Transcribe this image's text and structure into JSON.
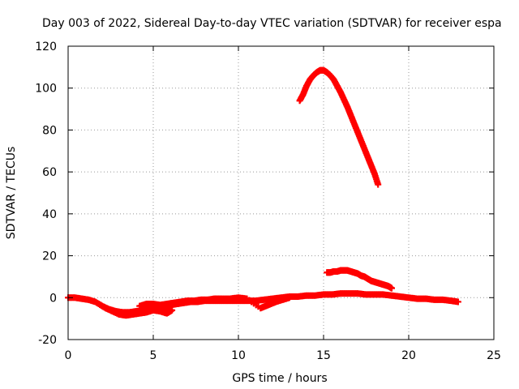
{
  "chart_data": {
    "type": "scatter",
    "title": "Day 003 of 2022, Sidereal Day-to-day VTEC variation (SDTVAR) for receiver espa",
    "xlabel": "GPS time / hours",
    "ylabel": "SDTVAR / TECUs",
    "xlim": [
      0,
      25
    ],
    "ylim": [
      -20,
      120
    ],
    "xticks": [
      0,
      5,
      10,
      15,
      20,
      25
    ],
    "yticks": [
      -20,
      0,
      20,
      40,
      60,
      80,
      100,
      120
    ],
    "xtick_labels": [
      "0",
      "5",
      "10",
      "15",
      "20",
      "25"
    ],
    "ytick_labels": [
      "-20",
      "0",
      "20",
      "40",
      "60",
      "80",
      "100",
      "120"
    ],
    "grid": true,
    "marker": "+",
    "color": "#ff0000",
    "series": [
      {
        "name": "baseline",
        "points": [
          [
            0.0,
            0
          ],
          [
            0.4,
            0
          ],
          [
            0.8,
            -0.5
          ],
          [
            1.2,
            -1
          ],
          [
            1.6,
            -2
          ],
          [
            2.0,
            -4
          ],
          [
            2.4,
            -5.5
          ],
          [
            2.8,
            -6.5
          ],
          [
            3.2,
            -7
          ],
          [
            3.6,
            -7
          ],
          [
            4.0,
            -6.5
          ],
          [
            4.4,
            -6
          ],
          [
            4.8,
            -5
          ],
          [
            5.2,
            -4.5
          ],
          [
            5.6,
            -4
          ],
          [
            6.0,
            -3.5
          ],
          [
            6.4,
            -3
          ],
          [
            6.8,
            -2.5
          ],
          [
            7.2,
            -2
          ],
          [
            7.6,
            -2
          ],
          [
            8.0,
            -1.5
          ],
          [
            8.5,
            -1.5
          ],
          [
            9.0,
            -1.5
          ],
          [
            9.5,
            -1.5
          ],
          [
            10.0,
            -1.5
          ],
          [
            10.5,
            -1.5
          ],
          [
            11.0,
            -1.5
          ],
          [
            11.5,
            -1
          ],
          [
            12.0,
            -0.5
          ],
          [
            12.5,
            0
          ],
          [
            13.0,
            0.5
          ],
          [
            13.5,
            0.5
          ],
          [
            14.0,
            1
          ],
          [
            14.5,
            1
          ],
          [
            15.0,
            1.5
          ],
          [
            15.5,
            1.5
          ],
          [
            16.0,
            2
          ],
          [
            16.5,
            2
          ],
          [
            17.0,
            2
          ],
          [
            17.5,
            1.5
          ],
          [
            18.0,
            1.5
          ],
          [
            18.5,
            1.5
          ],
          [
            19.0,
            1
          ],
          [
            19.5,
            0.5
          ],
          [
            20.0,
            0
          ],
          [
            20.5,
            -0.5
          ],
          [
            21.0,
            -0.5
          ],
          [
            21.5,
            -1
          ],
          [
            22.0,
            -1
          ],
          [
            22.5,
            -1.5
          ],
          [
            22.9,
            -2
          ]
        ]
      },
      {
        "name": "lower-branch",
        "points": [
          [
            1.8,
            -3
          ],
          [
            2.2,
            -5
          ],
          [
            2.6,
            -6.5
          ],
          [
            3.0,
            -8
          ],
          [
            3.4,
            -8.5
          ],
          [
            3.8,
            -8
          ],
          [
            4.2,
            -7.5
          ],
          [
            4.6,
            -7
          ],
          [
            5.0,
            -6
          ],
          [
            5.4,
            -6.5
          ],
          [
            5.8,
            -7.5
          ],
          [
            6.1,
            -6
          ],
          [
            5.7,
            -5.5
          ]
        ]
      },
      {
        "name": "upper-branch",
        "points": [
          [
            4.2,
            -4
          ],
          [
            4.6,
            -3
          ],
          [
            5.0,
            -3
          ],
          [
            5.4,
            -3.5
          ],
          [
            5.8,
            -3
          ],
          [
            6.2,
            -2.5
          ],
          [
            6.6,
            -2
          ],
          [
            7.0,
            -1.5
          ],
          [
            7.4,
            -1.5
          ],
          [
            7.8,
            -1
          ],
          [
            8.2,
            -1
          ],
          [
            8.6,
            -0.5
          ],
          [
            9.0,
            -0.5
          ],
          [
            9.5,
            -0.5
          ],
          [
            10.0,
            0
          ],
          [
            10.5,
            -0.5
          ],
          [
            11.3,
            -5
          ],
          [
            11.6,
            -4
          ],
          [
            11.9,
            -3
          ],
          [
            12.2,
            -2
          ],
          [
            12.6,
            -1
          ],
          [
            13.0,
            0
          ]
        ]
      },
      {
        "name": "peak-arc",
        "points": [
          [
            13.6,
            94
          ],
          [
            13.8,
            97
          ],
          [
            14.0,
            101
          ],
          [
            14.2,
            104
          ],
          [
            14.4,
            106
          ],
          [
            14.6,
            107.5
          ],
          [
            14.8,
            108.5
          ],
          [
            15.0,
            108.5
          ],
          [
            15.2,
            107.5
          ],
          [
            15.4,
            106
          ],
          [
            15.6,
            104
          ],
          [
            15.8,
            101
          ],
          [
            16.0,
            98
          ],
          [
            16.2,
            94.5
          ],
          [
            16.4,
            91
          ],
          [
            16.6,
            87
          ],
          [
            16.8,
            83
          ],
          [
            17.0,
            79
          ],
          [
            17.2,
            75
          ],
          [
            17.4,
            71
          ],
          [
            17.6,
            67
          ],
          [
            17.8,
            63
          ],
          [
            18.0,
            59
          ],
          [
            18.2,
            54
          ]
        ]
      },
      {
        "name": "secondary-bump",
        "points": [
          [
            15.2,
            12
          ],
          [
            15.4,
            12
          ],
          [
            15.6,
            12.5
          ],
          [
            15.8,
            12.5
          ],
          [
            16.0,
            13
          ],
          [
            16.2,
            13
          ],
          [
            16.4,
            13
          ],
          [
            16.6,
            12.5
          ],
          [
            16.8,
            12
          ],
          [
            17.0,
            11.5
          ],
          [
            17.2,
            10.5
          ],
          [
            17.4,
            10
          ],
          [
            17.6,
            9
          ],
          [
            17.8,
            8
          ],
          [
            18.0,
            7.5
          ],
          [
            18.2,
            7
          ],
          [
            18.4,
            6.5
          ],
          [
            18.6,
            6
          ],
          [
            18.8,
            5.5
          ],
          [
            19.0,
            4.5
          ]
        ]
      }
    ]
  }
}
